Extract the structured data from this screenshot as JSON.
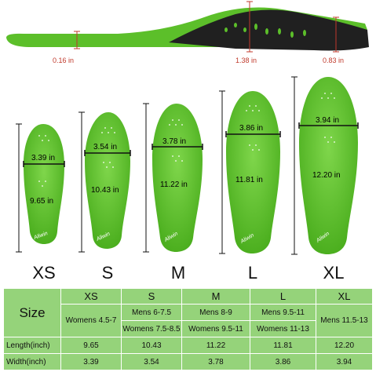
{
  "side_view": {
    "heel_depth": "0.16 in",
    "arch_height": "1.38 in",
    "forefoot_thickness": "0.83 in"
  },
  "insoles": [
    {
      "size": "XS",
      "width": "3.39 in",
      "length": "9.65 in"
    },
    {
      "size": "S",
      "width": "3.54 in",
      "length": "10.43 in"
    },
    {
      "size": "M",
      "width": "3.78 in",
      "length": "11.22 in"
    },
    {
      "size": "L",
      "width": "3.86 in",
      "length": "11.81 in"
    },
    {
      "size": "XL",
      "width": "3.94 in",
      "length": "12.20 in"
    }
  ],
  "brand_mark": "Aliwin",
  "table": {
    "size_header": "Size",
    "sizes": [
      "XS",
      "S",
      "M",
      "L",
      "XL"
    ],
    "shoe_sizes": {
      "xs": "Womens 4.5-7",
      "s_mens": "Mens 6-7.5",
      "s_womens": "Womens 7.5-8.5",
      "m_mens": "Mens 8-9",
      "m_womens": "Womens 9.5-11",
      "l_mens": "Mens 9.5-11",
      "l_womens": "Womens 11-13",
      "xl": "Mens 11.5-13"
    },
    "length_label": "Length(inch)",
    "lengths": [
      "9.65",
      "10.43",
      "11.22",
      "11.81",
      "12.20"
    ],
    "width_label": "Width(inch)",
    "widths": [
      "3.39",
      "3.54",
      "3.78",
      "3.86",
      "3.94"
    ]
  },
  "colors": {
    "insole_green": "#5cbf2a",
    "table_green": "#95d37a",
    "dimension_red": "#c0392b"
  }
}
